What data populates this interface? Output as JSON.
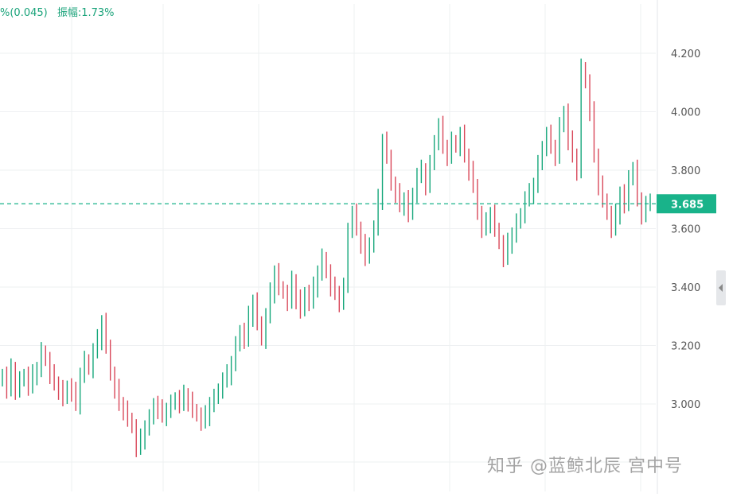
{
  "header": {
    "change_text": "%(0.045)",
    "amplitude_label": "振幅:1.73%"
  },
  "watermark": "知乎 @蓝鲸北辰 宫中号",
  "colors": {
    "up": "#16a77b",
    "down": "#d9485a",
    "grid": "#eef0f2",
    "last_price": "#19b38a"
  },
  "chart_data": {
    "type": "candlestick",
    "title": "",
    "xlabel": "",
    "ylabel": "",
    "ylim": [
      2.85,
      4.35
    ],
    "yticks": [
      "3.000",
      "3.200",
      "3.400",
      "3.600",
      "3.800",
      "4.000",
      "4.200"
    ],
    "last_price": 3.685,
    "last_price_label": "3.685",
    "grid": true,
    "series": [
      3.1,
      3.05,
      3.12,
      3.05,
      3.08,
      3.1,
      3.06,
      3.1,
      3.12,
      3.18,
      3.15,
      3.1,
      3.07,
      3.05,
      3.02,
      3.06,
      3.04,
      3.0,
      3.1,
      3.15,
      3.12,
      3.18,
      3.22,
      3.28,
      3.2,
      3.1,
      3.05,
      3.0,
      2.98,
      2.95,
      2.92,
      2.85,
      2.88,
      2.92,
      2.95,
      3.0,
      2.98,
      2.96,
      2.98,
      3.0,
      3.02,
      3.0,
      3.03,
      3.01,
      2.98,
      2.96,
      2.94,
      2.96,
      3.0,
      3.02,
      3.05,
      3.08,
      3.1,
      3.14,
      3.2,
      3.25,
      3.22,
      3.3,
      3.35,
      3.28,
      3.22,
      3.3,
      3.38,
      3.45,
      3.4,
      3.38,
      3.35,
      3.42,
      3.36,
      3.32,
      3.38,
      3.35,
      3.4,
      3.45,
      3.5,
      3.45,
      3.4,
      3.38,
      3.35,
      3.4,
      3.6,
      3.65,
      3.6,
      3.55,
      3.5,
      3.55,
      3.6,
      3.7,
      3.9,
      3.85,
      3.75,
      3.72,
      3.68,
      3.7,
      3.65,
      3.72,
      3.78,
      3.8,
      3.75,
      3.82,
      3.9,
      3.95,
      3.88,
      3.85,
      3.9,
      3.88,
      3.92,
      3.85,
      3.8,
      3.75,
      3.65,
      3.6,
      3.62,
      3.65,
      3.6,
      3.55,
      3.5,
      3.55,
      3.58,
      3.62,
      3.65,
      3.7,
      3.72,
      3.75,
      3.82,
      3.88,
      3.92,
      3.88,
      3.85,
      3.95,
      4.0,
      3.9,
      3.85,
      3.8,
      4.15,
      4.1,
      4.0,
      3.85,
      3.75,
      3.7,
      3.65,
      3.6,
      3.65,
      3.72,
      3.68,
      3.78,
      3.8,
      3.7,
      3.65,
      3.68,
      3.7
    ]
  }
}
